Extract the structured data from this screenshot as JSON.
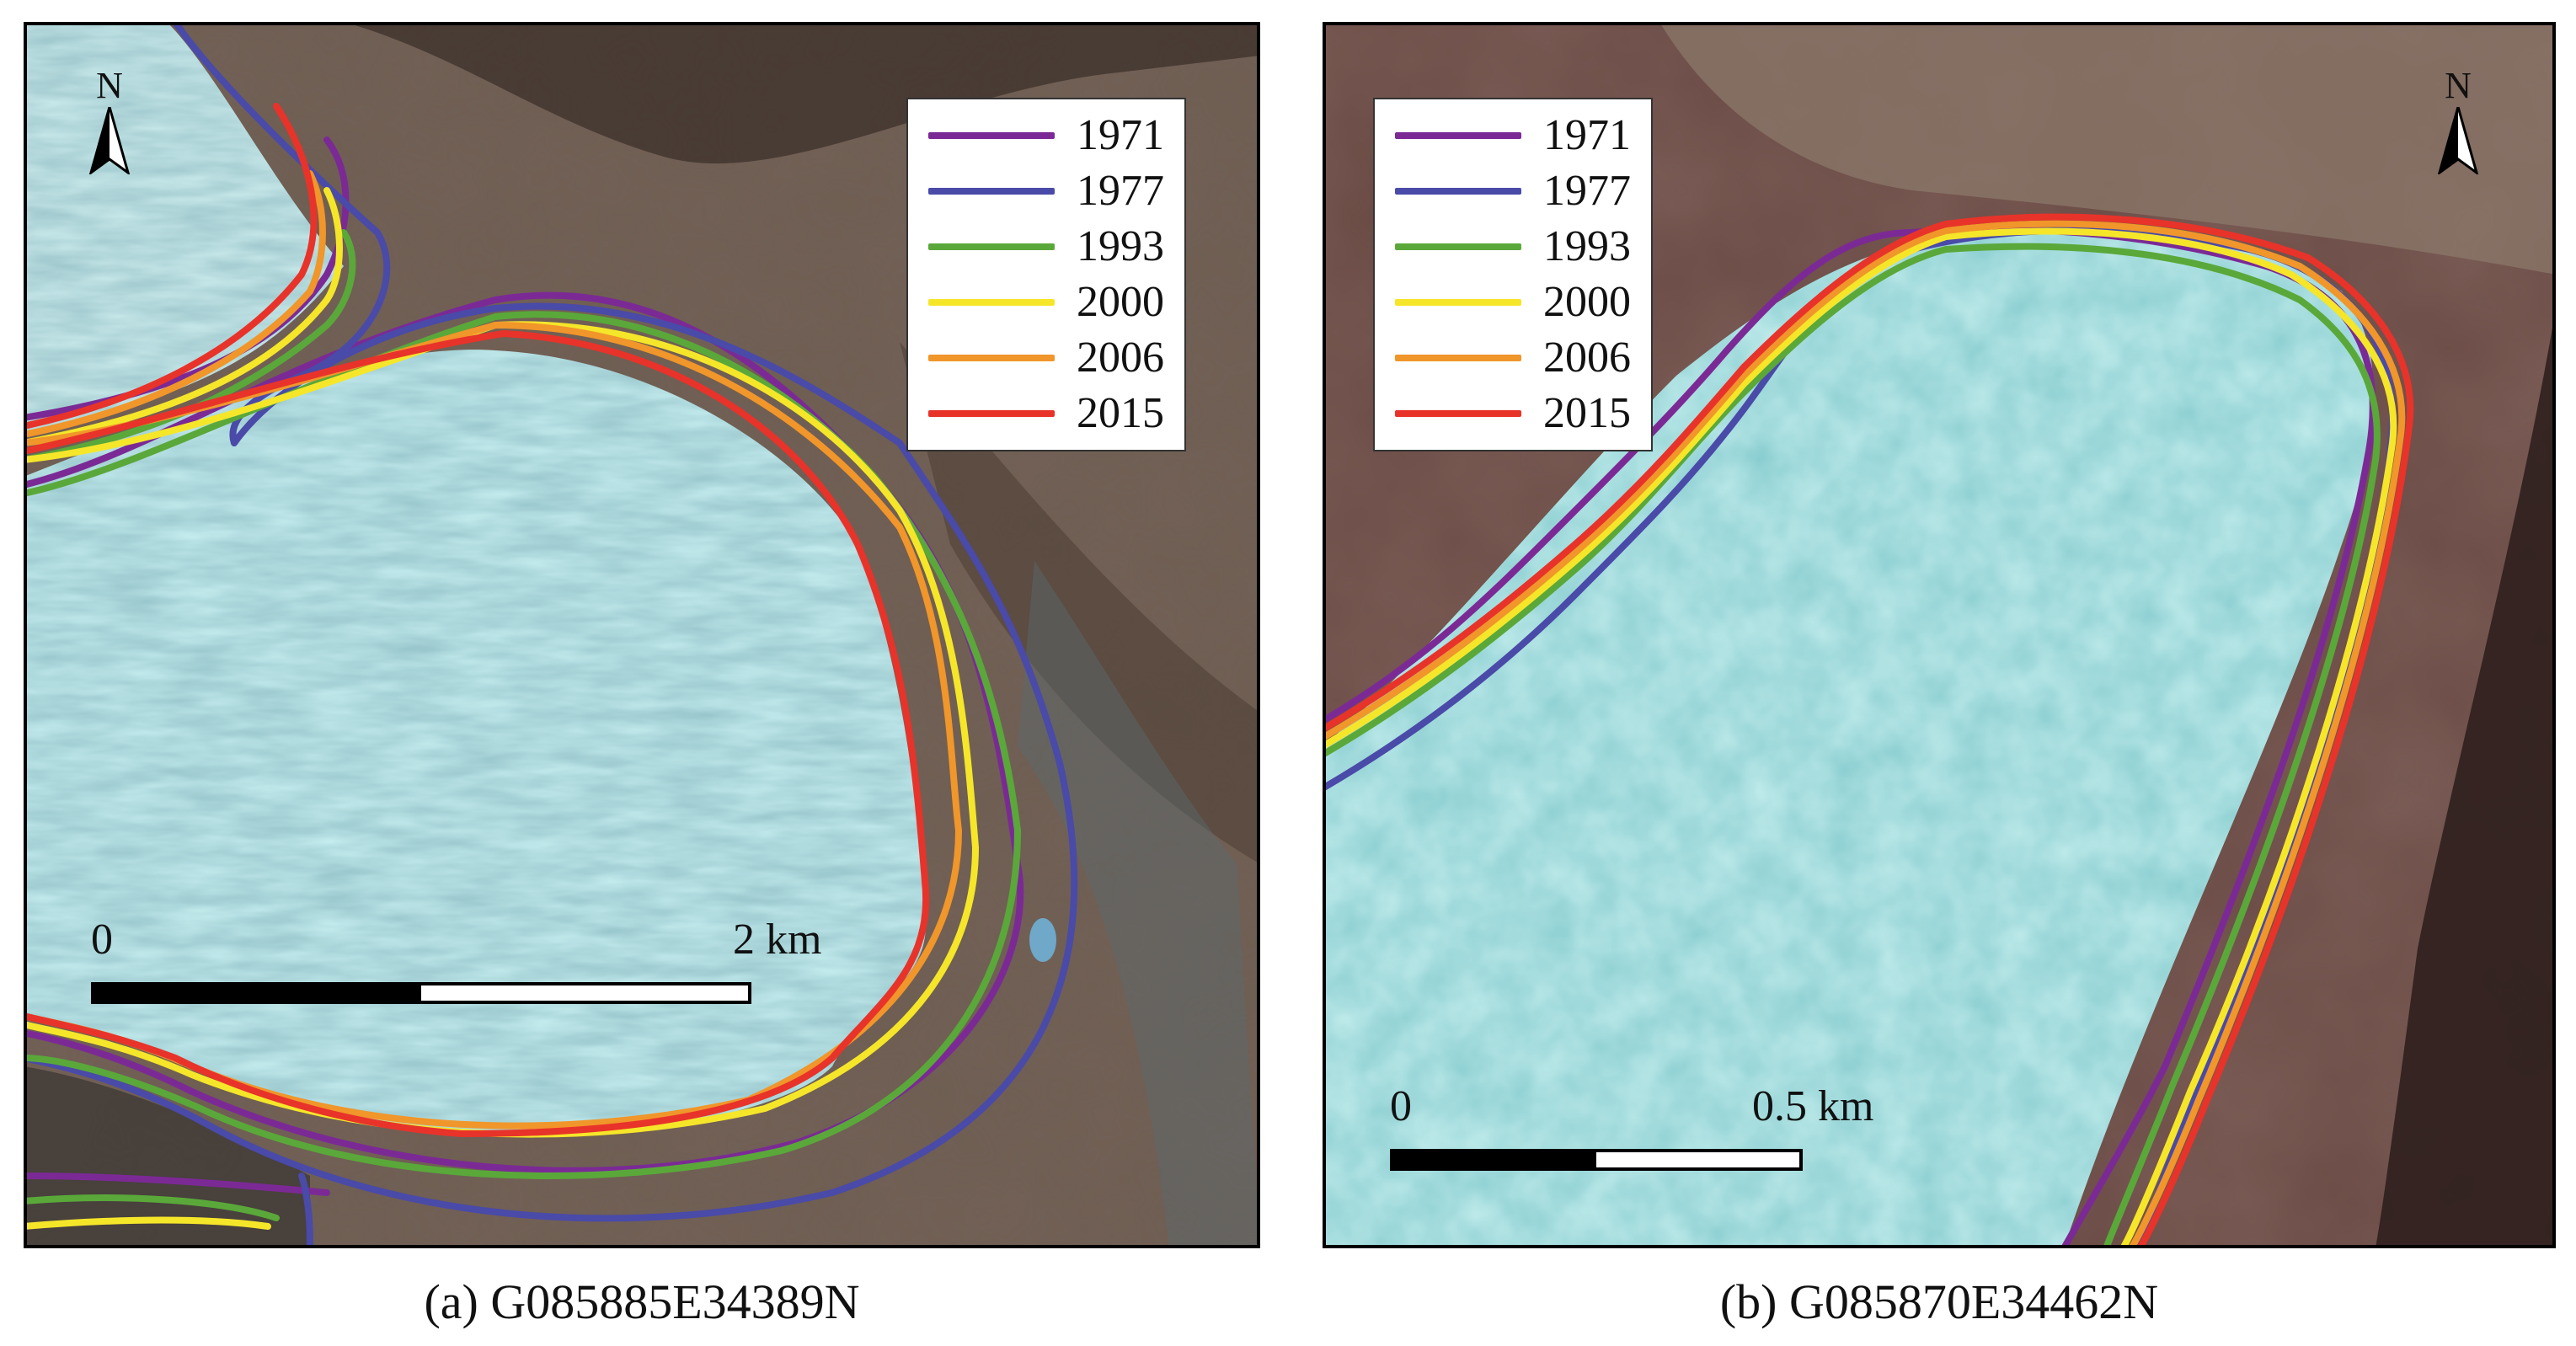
{
  "panels": [
    {
      "caption": "(a) G085885E34389N",
      "north_label": "N",
      "scale": {
        "start_label": "0",
        "end_label": "2 km"
      },
      "legend": [
        {
          "year": "1971",
          "color": "#7b2a95"
        },
        {
          "year": "1977",
          "color": "#4a4aa8"
        },
        {
          "year": "1993",
          "color": "#5aa83a"
        },
        {
          "year": "2000",
          "color": "#f5e62a"
        },
        {
          "year": "2006",
          "color": "#f0962a"
        },
        {
          "year": "2015",
          "color": "#e8332a"
        }
      ]
    },
    {
      "caption": "(b) G085870E34462N",
      "north_label": "N",
      "scale": {
        "start_label": "0",
        "end_label": "0.5 km"
      },
      "legend": [
        {
          "year": "1971",
          "color": "#7b2a95"
        },
        {
          "year": "1977",
          "color": "#4a4aa8"
        },
        {
          "year": "1993",
          "color": "#5aa83a"
        },
        {
          "year": "2000",
          "color": "#f5e62a"
        },
        {
          "year": "2006",
          "color": "#f0962a"
        },
        {
          "year": "2015",
          "color": "#e8332a"
        }
      ]
    }
  ]
}
